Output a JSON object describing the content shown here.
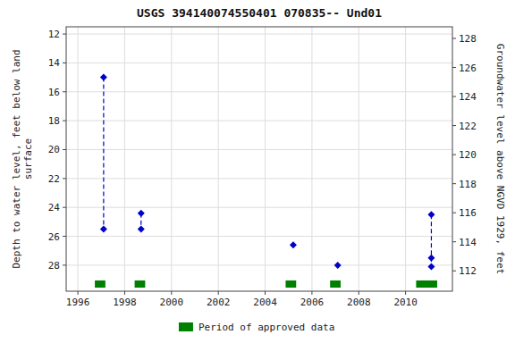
{
  "chart_data": {
    "type": "line",
    "title": "USGS 394140074550401 070835-- Und01",
    "ylabel": "Depth to water level, feet below land\n surface",
    "y2label": "Groundwater level above NGVD 1929, feet",
    "xlim": [
      1995.5,
      2012.0
    ],
    "xticks": [
      1996,
      1998,
      2000,
      2002,
      2004,
      2006,
      2008,
      2010
    ],
    "ylim": [
      29.8,
      11.5
    ],
    "yticks": [
      12,
      14,
      16,
      18,
      20,
      22,
      24,
      26,
      28
    ],
    "y2lim": [
      110.6,
      128.8
    ],
    "y2ticks": [
      128,
      126,
      124,
      122,
      120,
      118,
      116,
      114,
      112
    ],
    "grid": true,
    "legend": "bottom",
    "series": [
      {
        "type": "line",
        "color": "#0000cc",
        "marker": "diamond",
        "line_style": "dashed",
        "x": [
          1997.1,
          1997.1
        ],
        "values": [
          15.0,
          25.5
        ]
      },
      {
        "type": "line",
        "color": "#0000cc",
        "marker": "diamond",
        "line_style": "dashed",
        "x": [
          1998.7,
          1998.7
        ],
        "values": [
          24.4,
          25.5
        ]
      },
      {
        "type": "line",
        "color": "#0000cc",
        "marker": "diamond",
        "line_style": "dashed",
        "x": [
          2011.1,
          2011.1,
          2011.1
        ],
        "values": [
          24.5,
          27.5,
          28.1
        ]
      },
      {
        "type": "scatter",
        "color": "#0000cc",
        "marker": "diamond",
        "x": [
          2005.2,
          2007.1
        ],
        "values": [
          26.6,
          28.0
        ]
      },
      {
        "type": "bar",
        "name": "Period of approved data",
        "color": "#008000",
        "x": [
          1996.95,
          1998.65,
          2005.1,
          2007.0,
          2010.9
        ],
        "widths": [
          0.45,
          0.45,
          0.45,
          0.45,
          0.9
        ]
      }
    ]
  }
}
